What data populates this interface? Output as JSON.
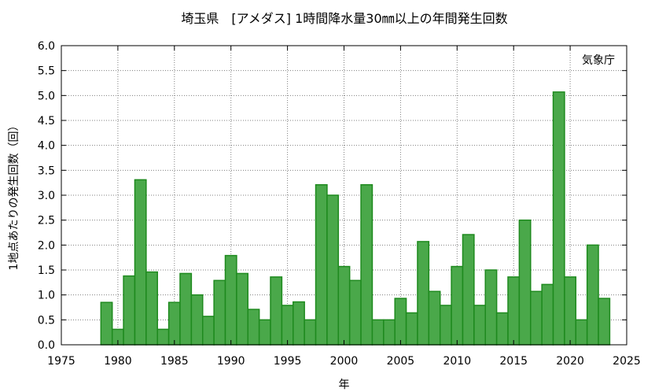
{
  "chart_data": {
    "type": "bar",
    "title": "埼玉県　[アメダス] 1時間降水量30㎜以上の年間発生回数",
    "xlabel": "年",
    "ylabel": "1地点あたりの発生回数（回）",
    "annotation": "気象庁",
    "xlim": [
      1975,
      2025
    ],
    "ylim": [
      0,
      6
    ],
    "grid": true,
    "bar_color": "#4aa84a",
    "bar_edge_color": "#1e8a1e",
    "xticks": [
      "1975",
      "1980",
      "1985",
      "1990",
      "1995",
      "2000",
      "2005",
      "2010",
      "2015",
      "2020",
      "2025"
    ],
    "yticks": [
      "0.0",
      "0.5",
      "1.0",
      "1.5",
      "2.0",
      "2.5",
      "3.0",
      "3.5",
      "4.0",
      "4.5",
      "5.0",
      "5.5",
      "6.0"
    ],
    "x": [
      1979,
      1980,
      1981,
      1982,
      1983,
      1984,
      1985,
      1986,
      1987,
      1988,
      1989,
      1990,
      1991,
      1992,
      1993,
      1994,
      1995,
      1996,
      1997,
      1998,
      1999,
      2000,
      2001,
      2002,
      2003,
      2004,
      2005,
      2006,
      2007,
      2008,
      2009,
      2010,
      2011,
      2012,
      2013,
      2014,
      2015,
      2016,
      2017,
      2018,
      2019,
      2020,
      2021,
      2022,
      2023
    ],
    "values": [
      0.85,
      0.31,
      1.38,
      3.31,
      1.46,
      0.31,
      0.85,
      1.43,
      1.0,
      0.57,
      1.29,
      1.79,
      1.43,
      0.71,
      0.5,
      1.36,
      0.79,
      0.86,
      0.5,
      3.21,
      3.0,
      1.57,
      1.29,
      3.21,
      0.5,
      0.5,
      0.93,
      0.64,
      2.07,
      1.07,
      0.79,
      1.57,
      2.21,
      0.79,
      1.5,
      0.64,
      1.36,
      2.5,
      1.07,
      1.21,
      5.07,
      1.36,
      0.5,
      2.0,
      0.93
    ]
  }
}
